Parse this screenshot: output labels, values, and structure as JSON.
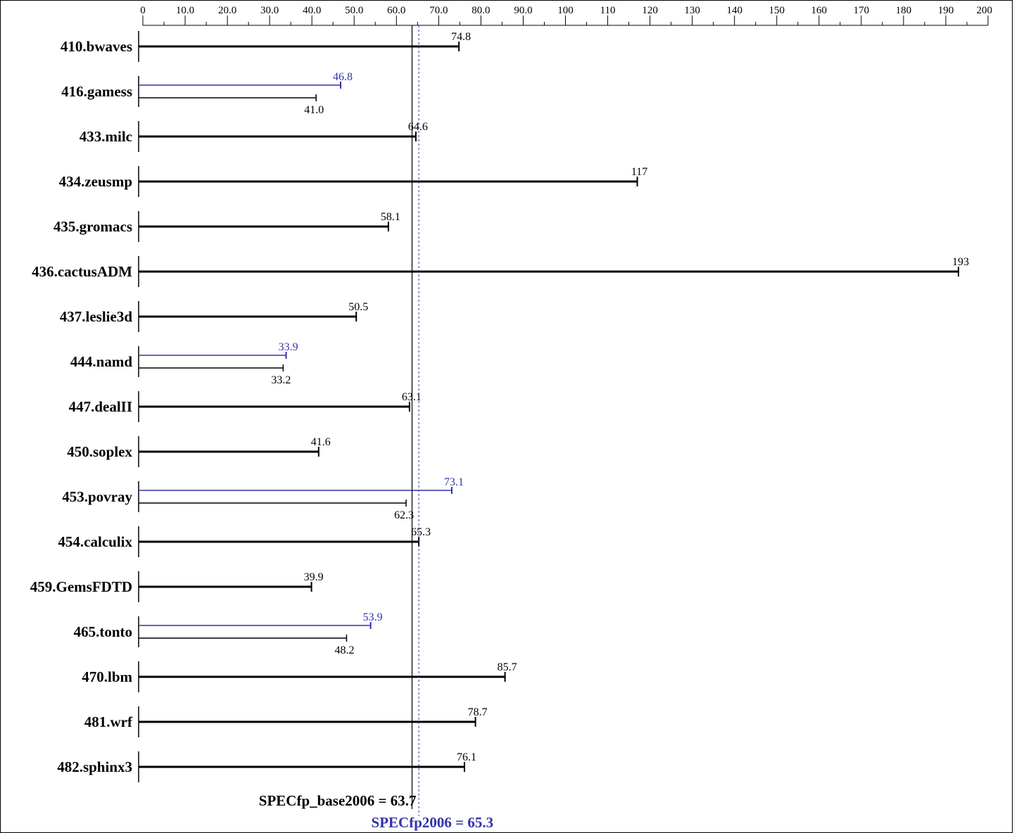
{
  "chart_data": {
    "type": "bar",
    "orientation": "horizontal",
    "xlim": [
      0,
      200
    ],
    "x_ticks": [
      "0",
      "10.0",
      "20.0",
      "30.0",
      "40.0",
      "50.0",
      "60.0",
      "70.0",
      "80.0",
      "90.0",
      "100",
      "110",
      "120",
      "130",
      "140",
      "150",
      "160",
      "170",
      "180",
      "190",
      "200"
    ],
    "x_tick_values": [
      0,
      10,
      20,
      30,
      40,
      50,
      60,
      70,
      80,
      90,
      100,
      110,
      120,
      130,
      140,
      150,
      160,
      170,
      180,
      190,
      200
    ],
    "colors": {
      "base": "#000000",
      "peak": "#3333aa"
    },
    "benchmarks": [
      {
        "name": "410.bwaves",
        "base": 74.8,
        "base_label": "74.8"
      },
      {
        "name": "416.gamess",
        "base": 41.0,
        "base_label": "41.0",
        "peak": 46.8,
        "peak_label": "46.8"
      },
      {
        "name": "433.milc",
        "base": 64.6,
        "base_label": "64.6"
      },
      {
        "name": "434.zeusmp",
        "base": 117,
        "base_label": "117"
      },
      {
        "name": "435.gromacs",
        "base": 58.1,
        "base_label": "58.1"
      },
      {
        "name": "436.cactusADM",
        "base": 193,
        "base_label": "193"
      },
      {
        "name": "437.leslie3d",
        "base": 50.5,
        "base_label": "50.5"
      },
      {
        "name": "444.namd",
        "base": 33.2,
        "base_label": "33.2",
        "peak": 33.9,
        "peak_label": "33.9"
      },
      {
        "name": "447.dealII",
        "base": 63.1,
        "base_label": "63.1"
      },
      {
        "name": "450.soplex",
        "base": 41.6,
        "base_label": "41.6"
      },
      {
        "name": "453.povray",
        "base": 62.3,
        "base_label": "62.3",
        "peak": 73.1,
        "peak_label": "73.1"
      },
      {
        "name": "454.calculix",
        "base": 65.3,
        "base_label": "65.3"
      },
      {
        "name": "459.GemsFDTD",
        "base": 39.9,
        "base_label": "39.9"
      },
      {
        "name": "465.tonto",
        "base": 48.2,
        "base_label": "48.2",
        "peak": 53.9,
        "peak_label": "53.9"
      },
      {
        "name": "470.lbm",
        "base": 85.7,
        "base_label": "85.7"
      },
      {
        "name": "481.wrf",
        "base": 78.7,
        "base_label": "78.7"
      },
      {
        "name": "482.sphinx3",
        "base": 76.1,
        "base_label": "76.1"
      }
    ],
    "summary": {
      "base_value": 63.7,
      "base_label": "SPECfp_base2006 = 63.7",
      "peak_value": 65.3,
      "peak_label": "SPECfp2006 = 65.3"
    }
  }
}
